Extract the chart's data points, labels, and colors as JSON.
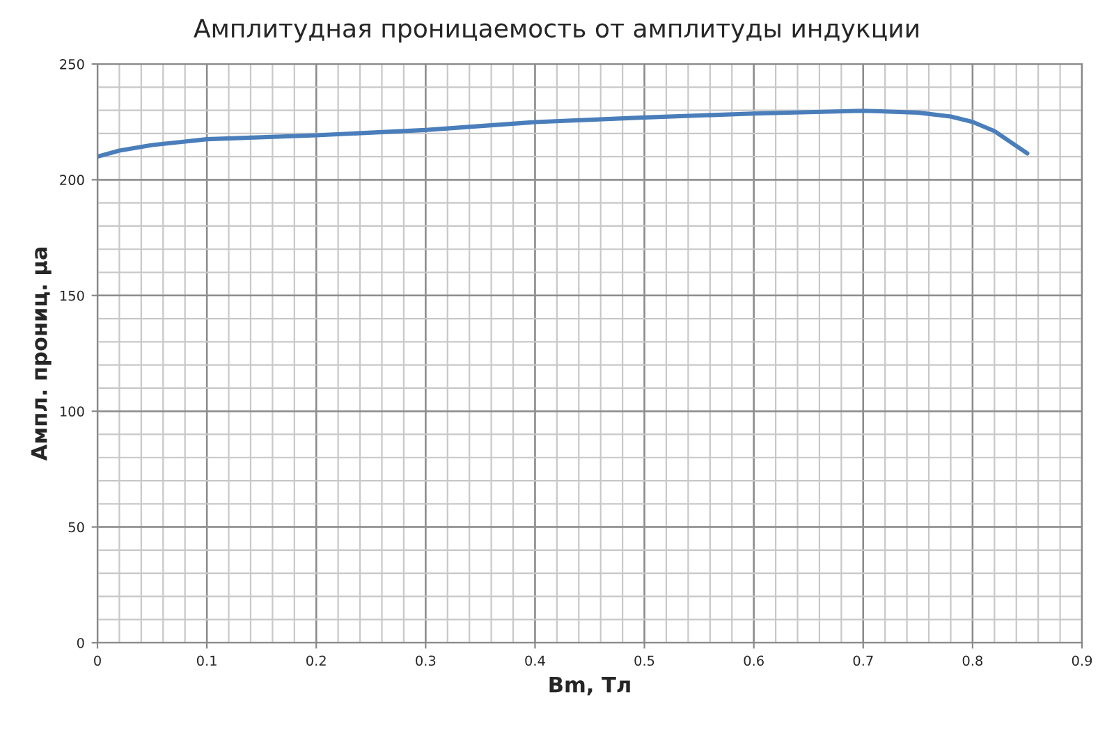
{
  "chart_data": {
    "type": "line",
    "title": "Амплитудная проницаемость от амплитуды индукции",
    "xlabel": "Bm, Тл",
    "ylabel": "Ампл. прониц. μа",
    "x": [
      0,
      0.02,
      0.05,
      0.1,
      0.2,
      0.3,
      0.4,
      0.5,
      0.6,
      0.7,
      0.75,
      0.78,
      0.8,
      0.82,
      0.85
    ],
    "series": [
      {
        "color": "#4a7ebb",
        "values": [
          210,
          212.6,
          215,
          217.5,
          219.2,
          221.5,
          224.9,
          226.9,
          228.6,
          229.8,
          229,
          227.3,
          225,
          221,
          211.4
        ]
      }
    ],
    "xlim": [
      0,
      0.9
    ],
    "xticks": [
      0,
      0.1,
      0.2,
      0.3,
      0.4,
      0.5,
      0.6,
      0.7,
      0.8,
      0.9
    ],
    "ylim": [
      0,
      250
    ],
    "yticks": [
      0,
      50,
      100,
      150,
      200,
      250
    ],
    "grid": true,
    "marker": "none",
    "line_style": "solid"
  }
}
